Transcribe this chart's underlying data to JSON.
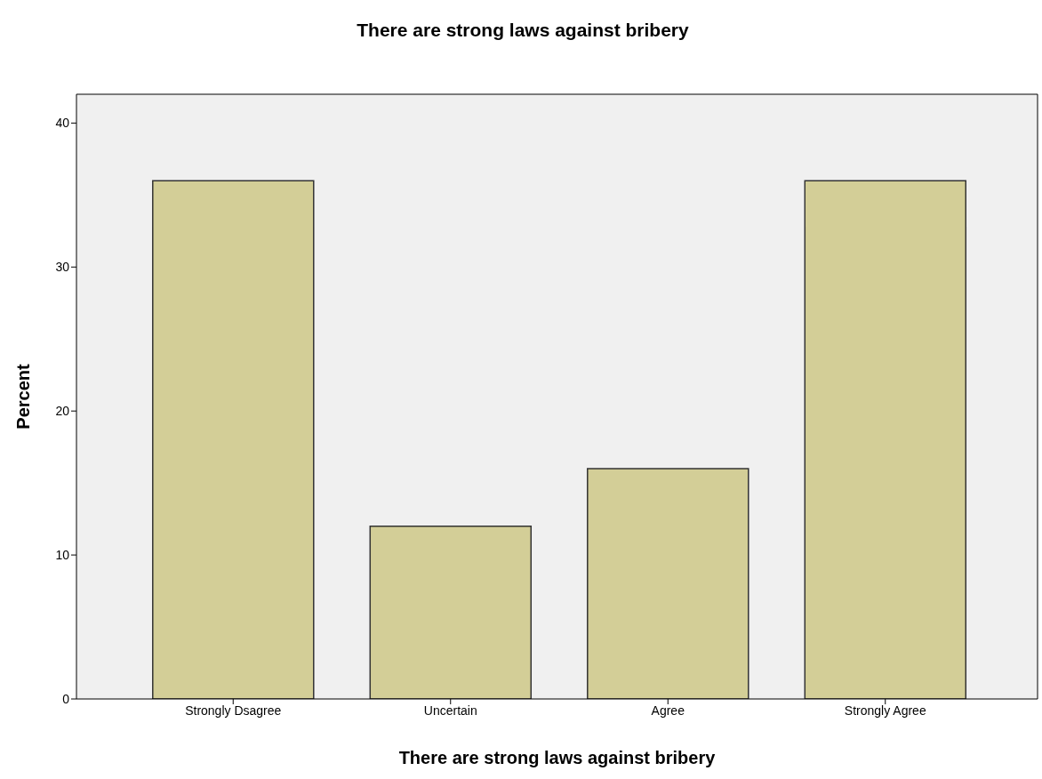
{
  "chart_data": {
    "type": "bar",
    "title": "There are strong laws against bribery",
    "xlabel": "There are strong laws against bribery",
    "ylabel": "Percent",
    "categories": [
      "Strongly Dsagree",
      "Uncertain",
      "Agree",
      "Strongly Agree"
    ],
    "values": [
      36,
      12,
      16,
      36
    ],
    "color": "#d3ce97",
    "ylim": [
      0,
      42
    ],
    "yticks": [
      0,
      10,
      20,
      30,
      40
    ]
  }
}
